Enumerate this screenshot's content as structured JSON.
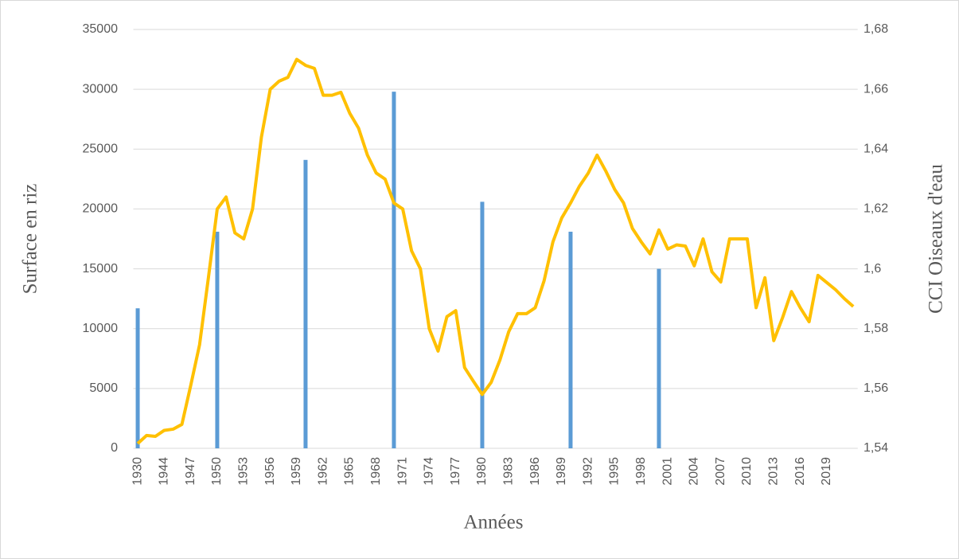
{
  "chart_data": {
    "type": "bar-line",
    "x_label": "Années",
    "y_label": "Surface en riz",
    "y2_label": "CCI Oiseaux d'eau",
    "categories": [
      1930,
      null,
      null,
      1944,
      null,
      null,
      1947,
      null,
      null,
      1950,
      null,
      null,
      1953,
      null,
      null,
      1956,
      null,
      null,
      1959,
      null,
      null,
      1962,
      null,
      null,
      1965,
      null,
      null,
      1968,
      null,
      null,
      1971,
      null,
      null,
      1974,
      null,
      null,
      1977,
      null,
      null,
      1980,
      null,
      null,
      1983,
      null,
      null,
      1986,
      null,
      null,
      1989,
      null,
      null,
      1992,
      null,
      null,
      1995,
      null,
      null,
      1998,
      null,
      null,
      2001,
      null,
      null,
      2004,
      null,
      null,
      2007,
      null,
      null,
      2010,
      null,
      null,
      2013,
      null,
      null,
      2016,
      null,
      null,
      2019,
      null,
      null,
      null
    ],
    "series": [
      {
        "type": "bar",
        "axis": "y",
        "color": "#5b9bd5",
        "values": [
          11700,
          null,
          null,
          null,
          null,
          null,
          null,
          null,
          null,
          18100,
          null,
          null,
          null,
          null,
          null,
          null,
          null,
          null,
          null,
          24100,
          null,
          null,
          null,
          null,
          null,
          null,
          null,
          null,
          null,
          29800,
          null,
          null,
          null,
          null,
          null,
          null,
          null,
          null,
          null,
          20600,
          null,
          null,
          null,
          null,
          null,
          null,
          null,
          null,
          null,
          18100,
          null,
          null,
          null,
          null,
          null,
          null,
          null,
          null,
          null,
          15000,
          null,
          null,
          null,
          null,
          null,
          null,
          null,
          null,
          null,
          null,
          null,
          null,
          null,
          null,
          null,
          null,
          null,
          null,
          null,
          null,
          null,
          null
        ]
      },
      {
        "type": "line",
        "axis": "y2",
        "color": "#ffc000",
        "values": [
          1.5416,
          1.5443,
          1.544,
          1.546,
          1.5464,
          1.548,
          1.561,
          1.5746,
          1.597,
          1.62,
          1.624,
          1.612,
          1.61,
          1.62,
          1.644,
          1.66,
          1.6627,
          1.664,
          1.67,
          1.668,
          1.667,
          1.658,
          1.658,
          1.659,
          1.652,
          1.647,
          1.638,
          1.632,
          1.63,
          1.622,
          1.62,
          1.606,
          1.6,
          1.58,
          1.5725,
          1.584,
          1.586,
          1.567,
          1.5624,
          1.558,
          1.562,
          1.5695,
          1.579,
          1.585,
          1.585,
          1.587,
          1.596,
          1.609,
          1.617,
          1.622,
          1.6276,
          1.632,
          1.638,
          1.6326,
          1.6265,
          1.622,
          1.6135,
          1.609,
          1.605,
          1.613,
          1.6066,
          1.608,
          1.6076,
          1.601,
          1.61,
          1.599,
          1.5956,
          1.61,
          1.61,
          1.61,
          1.587,
          1.597,
          1.576,
          1.5837,
          1.5924,
          1.587,
          1.5823,
          1.5978,
          1.5954,
          1.593,
          1.59,
          1.5874
        ]
      }
    ],
    "ylim": [
      0,
      35000
    ],
    "yticks": [
      0,
      5000,
      10000,
      15000,
      20000,
      25000,
      30000,
      35000
    ],
    "y2lim": [
      1.54,
      1.68
    ],
    "y2ticks": [
      {
        "value": 1.54,
        "label": "1,54"
      },
      {
        "value": 1.56,
        "label": "1,56"
      },
      {
        "value": 1.58,
        "label": "1,58"
      },
      {
        "value": 1.6,
        "label": "1,6"
      },
      {
        "value": 1.62,
        "label": "1,62"
      },
      {
        "value": 1.64,
        "label": "1,64"
      },
      {
        "value": 1.66,
        "label": "1,66"
      },
      {
        "value": 1.68,
        "label": "1,68"
      }
    ],
    "grid": true
  }
}
